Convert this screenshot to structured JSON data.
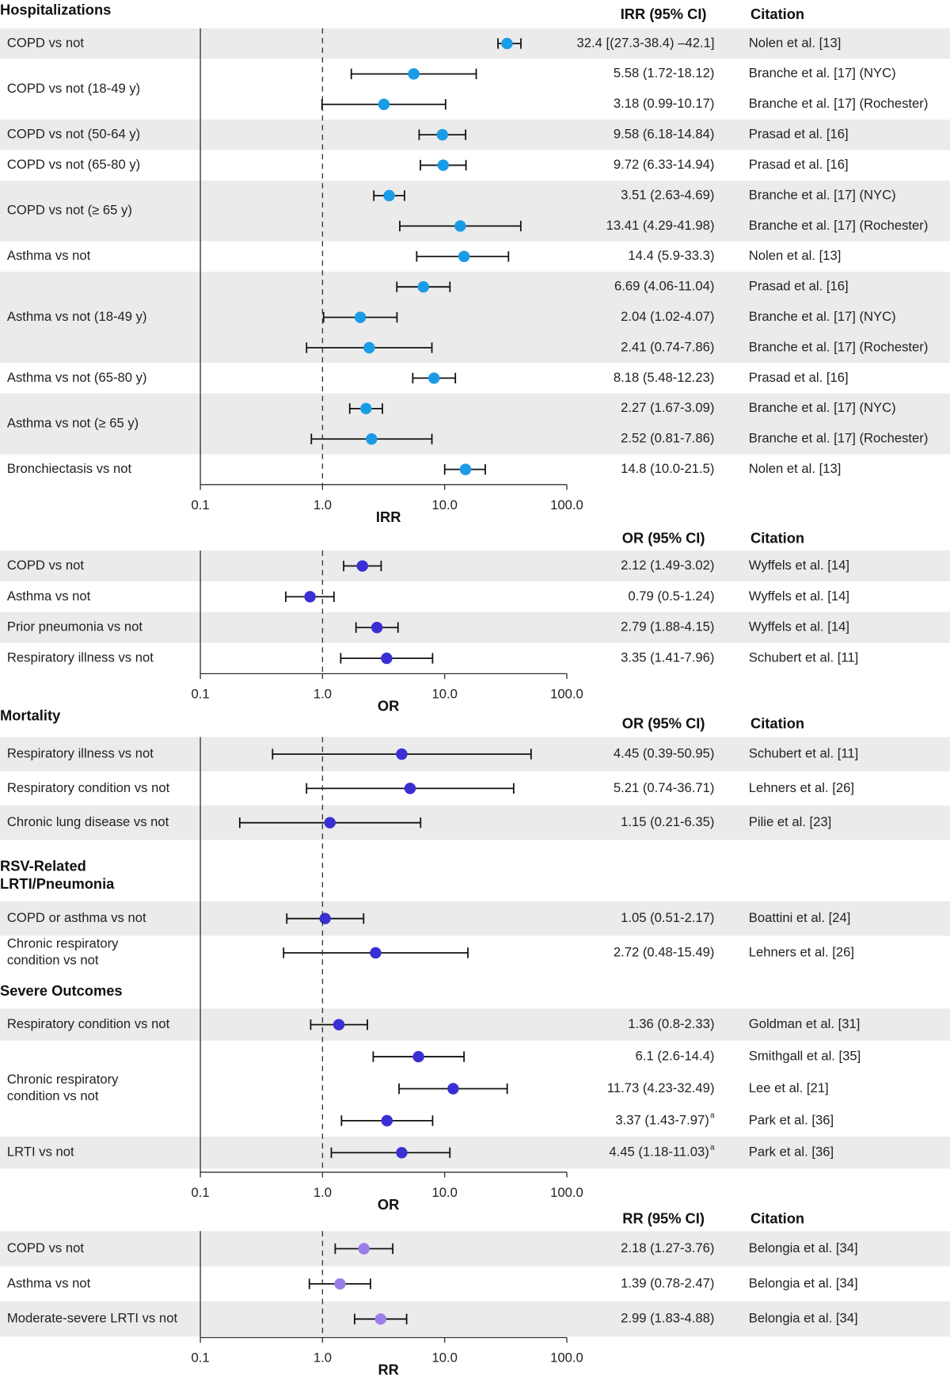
{
  "chart_data": [
    {
      "type": "forest",
      "column_headers": [
        "IRR (95% CI)",
        "Citation"
      ],
      "xlabel": "IRR",
      "log_x": true,
      "color": "#1a9be6",
      "xlim": [
        0.1,
        100
      ],
      "xticks": [
        0.1,
        {
          "value": 1,
          "label": "1.0"
        },
        {
          "value": 10,
          "label": "10.0"
        },
        {
          "value": 100,
          "label": "100.0"
        }
      ],
      "reference_x": 1,
      "sections": [
        {
          "title": "Hospitalizations",
          "groups": [
            {
              "label": "COPD vs not",
              "rows": [
                {
                  "estimate": 32.4,
                  "lower": 27.3,
                  "upper": 42.1,
                  "label": "32.4 [(27.3-38.4) –42.1]",
                  "citation": "Nolen et al. [13]"
                }
              ]
            },
            {
              "label": "COPD vs not (18-49 y)",
              "rows": [
                {
                  "estimate": 5.58,
                  "lower": 1.72,
                  "upper": 18.12,
                  "label": "5.58 (1.72-18.12)",
                  "citation": "Branche et al. [17] (NYC)"
                },
                {
                  "estimate": 3.18,
                  "lower": 0.99,
                  "upper": 10.17,
                  "label": "3.18 (0.99-10.17)",
                  "citation": "Branche et al. [17] (Rochester)"
                }
              ]
            },
            {
              "label": "COPD vs not (50-64 y)",
              "rows": [
                {
                  "estimate": 9.58,
                  "lower": 6.18,
                  "upper": 14.84,
                  "label": "9.58 (6.18-14.84)",
                  "citation": "Prasad et al. [16]"
                }
              ]
            },
            {
              "label": "COPD vs not (65-80 y)",
              "rows": [
                {
                  "estimate": 9.72,
                  "lower": 6.33,
                  "upper": 14.94,
                  "label": "9.72 (6.33-14.94)",
                  "citation": "Prasad et al. [16]"
                }
              ]
            },
            {
              "label": "COPD vs not (≥ 65 y)",
              "rows": [
                {
                  "estimate": 3.51,
                  "lower": 2.63,
                  "upper": 4.69,
                  "label": "3.51 (2.63-4.69)",
                  "citation": "Branche et al. [17] (NYC)"
                },
                {
                  "estimate": 13.41,
                  "lower": 4.29,
                  "upper": 41.98,
                  "label": "13.41 (4.29-41.98)",
                  "citation": "Branche et al. [17] (Rochester)"
                }
              ]
            },
            {
              "label": "Asthma vs not",
              "rows": [
                {
                  "estimate": 14.4,
                  "lower": 5.9,
                  "upper": 33.3,
                  "label": "14.4 (5.9-33.3)",
                  "citation": "Nolen et al. [13]"
                }
              ]
            },
            {
              "label": "Asthma vs not (18-49 y)",
              "rows": [
                {
                  "estimate": 6.69,
                  "lower": 4.06,
                  "upper": 11.04,
                  "label": "6.69 (4.06-11.04)",
                  "citation": "Prasad et al. [16]"
                },
                {
                  "estimate": 2.04,
                  "lower": 1.02,
                  "upper": 4.07,
                  "label": "2.04 (1.02-4.07)",
                  "citation": "Branche et al. [17] (NYC)"
                },
                {
                  "estimate": 2.41,
                  "lower": 0.74,
                  "upper": 7.86,
                  "label": "2.41 (0.74-7.86)",
                  "citation": "Branche et al. [17] (Rochester)"
                }
              ]
            },
            {
              "label": "Asthma vs not (65-80 y)",
              "rows": [
                {
                  "estimate": 8.18,
                  "lower": 5.48,
                  "upper": 12.23,
                  "label": "8.18 (5.48-12.23)",
                  "citation": "Prasad et al. [16]"
                }
              ]
            },
            {
              "label": "Asthma vs not (≥ 65 y)",
              "rows": [
                {
                  "estimate": 2.27,
                  "lower": 1.67,
                  "upper": 3.09,
                  "label": "2.27 (1.67-3.09)",
                  "citation": "Branche et al. [17] (NYC)"
                },
                {
                  "estimate": 2.52,
                  "lower": 0.81,
                  "upper": 7.86,
                  "label": "2.52 (0.81-7.86)",
                  "citation": "Branche et al. [17] (Rochester)"
                }
              ]
            },
            {
              "label": "Bronchiectasis vs not",
              "rows": [
                {
                  "estimate": 14.8,
                  "lower": 10.0,
                  "upper": 21.5,
                  "label": "14.8 (10.0-21.5)",
                  "citation": "Nolen et al. [13]"
                }
              ]
            }
          ]
        }
      ]
    },
    {
      "type": "forest",
      "column_headers": [
        "OR (95% CI)",
        "Citation"
      ],
      "xlabel": "OR",
      "log_x": true,
      "color": "#3a2fd4",
      "xlim": [
        0.1,
        100
      ],
      "xticks": [
        0.1,
        {
          "value": 1,
          "label": "1.0"
        },
        {
          "value": 10,
          "label": "10.0"
        },
        {
          "value": 100,
          "label": "100.0"
        }
      ],
      "reference_x": 1,
      "sections": [
        {
          "groups": [
            {
              "label": "COPD vs not",
              "rows": [
                {
                  "estimate": 2.12,
                  "lower": 1.49,
                  "upper": 3.02,
                  "label": "2.12 (1.49-3.02)",
                  "citation": "Wyffels et al. [14]"
                }
              ]
            },
            {
              "label": "Asthma vs not",
              "rows": [
                {
                  "estimate": 0.79,
                  "lower": 0.5,
                  "upper": 1.24,
                  "label": "0.79 (0.5-1.24)",
                  "citation": "Wyffels et al. [14]"
                }
              ]
            },
            {
              "label": "Prior pneumonia vs not",
              "rows": [
                {
                  "estimate": 2.79,
                  "lower": 1.88,
                  "upper": 4.15,
                  "label": "2.79 (1.88-4.15)",
                  "citation": "Wyffels et al. [14]"
                }
              ]
            },
            {
              "label": "Respiratory illness vs not",
              "rows": [
                {
                  "estimate": 3.35,
                  "lower": 1.41,
                  "upper": 7.96,
                  "label": "3.35 (1.41-7.96)",
                  "citation": "Schubert et al. [11]"
                }
              ]
            }
          ]
        }
      ]
    },
    {
      "type": "forest",
      "column_headers": [
        "OR (95% CI)",
        "Citation"
      ],
      "xlabel": "OR",
      "log_x": true,
      "color": "#3a2fd4",
      "xlim": [
        0.1,
        100
      ],
      "xticks": [
        0.1,
        {
          "value": 1,
          "label": "1.0"
        },
        {
          "value": 10,
          "label": "10.0"
        },
        {
          "value": 100,
          "label": "100.0"
        }
      ],
      "reference_x": 1,
      "sections": [
        {
          "title": "Mortality",
          "groups": [
            {
              "label": "Respiratory illness vs not",
              "rows": [
                {
                  "estimate": 4.45,
                  "lower": 0.39,
                  "upper": 50.95,
                  "label": "4.45 (0.39-50.95)",
                  "citation": "Schubert et al. [11]"
                }
              ]
            },
            {
              "label": "Respiratory condition vs not",
              "rows": [
                {
                  "estimate": 5.21,
                  "lower": 0.74,
                  "upper": 36.71,
                  "label": "5.21 (0.74-36.71)",
                  "citation": "Lehners et al. [26]"
                }
              ]
            },
            {
              "label": "Chronic lung disease vs not",
              "rows": [
                {
                  "estimate": 1.15,
                  "lower": 0.21,
                  "upper": 6.35,
                  "label": "1.15 (0.21-6.35)",
                  "citation": "Pilie et al. [23]"
                }
              ]
            }
          ]
        },
        {
          "title": "RSV-Related\nLRTI/Pneumonia",
          "groups": [
            {
              "label": "COPD or asthma vs not",
              "rows": [
                {
                  "estimate": 1.05,
                  "lower": 0.51,
                  "upper": 2.17,
                  "label": "1.05 (0.51-2.17)",
                  "citation": "Boattini et al. [24]"
                }
              ]
            },
            {
              "label": "Chronic respiratory\ncondition vs not",
              "rows": [
                {
                  "estimate": 2.72,
                  "lower": 0.48,
                  "upper": 15.49,
                  "label": "2.72 (0.48-15.49)",
                  "citation": "Lehners et al. [26]"
                }
              ]
            }
          ]
        },
        {
          "title": "Severe Outcomes",
          "groups": [
            {
              "label": "Respiratory condition vs not",
              "rows": [
                {
                  "estimate": 1.36,
                  "lower": 0.8,
                  "upper": 2.33,
                  "label": "1.36 (0.8-2.33)",
                  "citation": "Goldman et al. [31]"
                }
              ]
            },
            {
              "label": "Chronic respiratory\ncondition vs not",
              "rows": [
                {
                  "estimate": 6.1,
                  "lower": 2.6,
                  "upper": 14.4,
                  "label": "6.1 (2.6-14.4)",
                  "citation": "Smithgall et al. [35]"
                },
                {
                  "estimate": 11.73,
                  "lower": 4.23,
                  "upper": 32.49,
                  "label": "11.73 (4.23-32.49)",
                  "citation": "Lee et al. [21]"
                },
                {
                  "estimate": 3.37,
                  "lower": 1.43,
                  "upper": 7.97,
                  "label": "3.37 (1.43-7.97)",
                  "note": "a",
                  "citation": "Park et al. [36]"
                }
              ]
            },
            {
              "label": "LRTI vs not",
              "rows": [
                {
                  "estimate": 4.45,
                  "lower": 1.18,
                  "upper": 11.03,
                  "label": "4.45 (1.18-11.03)",
                  "note": "a",
                  "citation": "Park et al. [36]"
                }
              ]
            }
          ]
        }
      ]
    },
    {
      "type": "forest",
      "column_headers": [
        "RR (95% CI)",
        "Citation"
      ],
      "xlabel": "RR",
      "log_x": true,
      "color": "#9a7ee8",
      "xlim": [
        0.1,
        100
      ],
      "xticks": [
        0.1,
        {
          "value": 1,
          "label": "1.0"
        },
        {
          "value": 10,
          "label": "10.0"
        },
        {
          "value": 100,
          "label": "100.0"
        }
      ],
      "reference_x": 1,
      "sections": [
        {
          "groups": [
            {
              "label": "COPD vs not",
              "rows": [
                {
                  "estimate": 2.18,
                  "lower": 1.27,
                  "upper": 3.76,
                  "label": "2.18 (1.27-3.76)",
                  "citation": "Belongia et al. [34]"
                }
              ]
            },
            {
              "label": "Asthma vs not",
              "rows": [
                {
                  "estimate": 1.39,
                  "lower": 0.78,
                  "upper": 2.47,
                  "label": "1.39 (0.78-2.47)",
                  "citation": "Belongia et al. [34]"
                }
              ]
            },
            {
              "label": "Moderate-severe LRTI vs not",
              "rows": [
                {
                  "estimate": 2.99,
                  "lower": 1.83,
                  "upper": 4.88,
                  "label": "2.99 (1.83-4.88)",
                  "citation": "Belongia et al. [34]"
                }
              ]
            }
          ]
        }
      ]
    }
  ]
}
